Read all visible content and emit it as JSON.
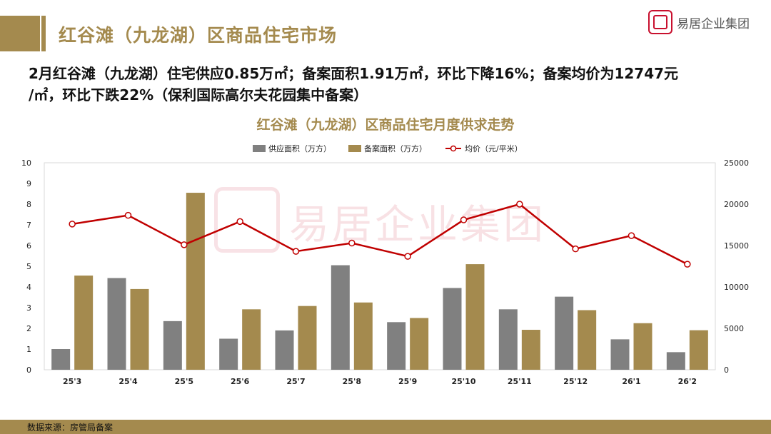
{
  "header": {
    "title": "红谷滩（九龙湖）区商品住宅市场",
    "logo_text": "易居企业集团",
    "accent_color": "#a48a4e"
  },
  "summary_line1": "2月红谷滩（九龙湖）住宅供应0.85万㎡；备案面积1.91万㎡，环比下降16%；备案均价为12747元",
  "summary_line2": "/㎡，环比下跌22%（保利国际高尔夫花园集中备案）",
  "watermark_text": "易居企业集团",
  "footer": {
    "source": "数据来源：房管局备案"
  },
  "chart_data": {
    "type": "bar",
    "title": "红谷滩（九龙湖）区商品住宅月度供求走势",
    "categories": [
      "25'3",
      "25'4",
      "25'5",
      "25'6",
      "25'7",
      "25'8",
      "25'9",
      "25'10",
      "25'11",
      "25'12",
      "26'1",
      "26'2"
    ],
    "series": [
      {
        "name": "供应面积（万方）",
        "type": "bar",
        "axis": "left",
        "color": "#808080",
        "values": [
          1.0,
          4.43,
          2.35,
          1.5,
          1.9,
          5.05,
          2.3,
          3.95,
          2.92,
          3.53,
          1.47,
          0.85
        ]
      },
      {
        "name": "备案面积（万方）",
        "type": "bar",
        "axis": "left",
        "color": "#a48a4e",
        "values": [
          4.55,
          3.9,
          8.55,
          2.92,
          3.08,
          3.25,
          2.5,
          5.1,
          1.93,
          2.88,
          2.25,
          1.91
        ]
      },
      {
        "name": "均价（元/平米）",
        "type": "line",
        "axis": "right",
        "color": "#c00000",
        "values": [
          17600,
          18650,
          15100,
          17900,
          14300,
          15300,
          13700,
          18100,
          20000,
          14600,
          16200,
          12747
        ]
      }
    ],
    "ylim_left": [
      0,
      10
    ],
    "yticks_left": [
      0,
      1,
      2,
      3,
      4,
      5,
      6,
      7,
      8,
      9,
      10
    ],
    "ylim_right": [
      0,
      25000
    ],
    "yticks_right": [
      0,
      5000,
      10000,
      15000,
      20000,
      25000
    ],
    "legend_position": "top-center",
    "grid": false
  }
}
